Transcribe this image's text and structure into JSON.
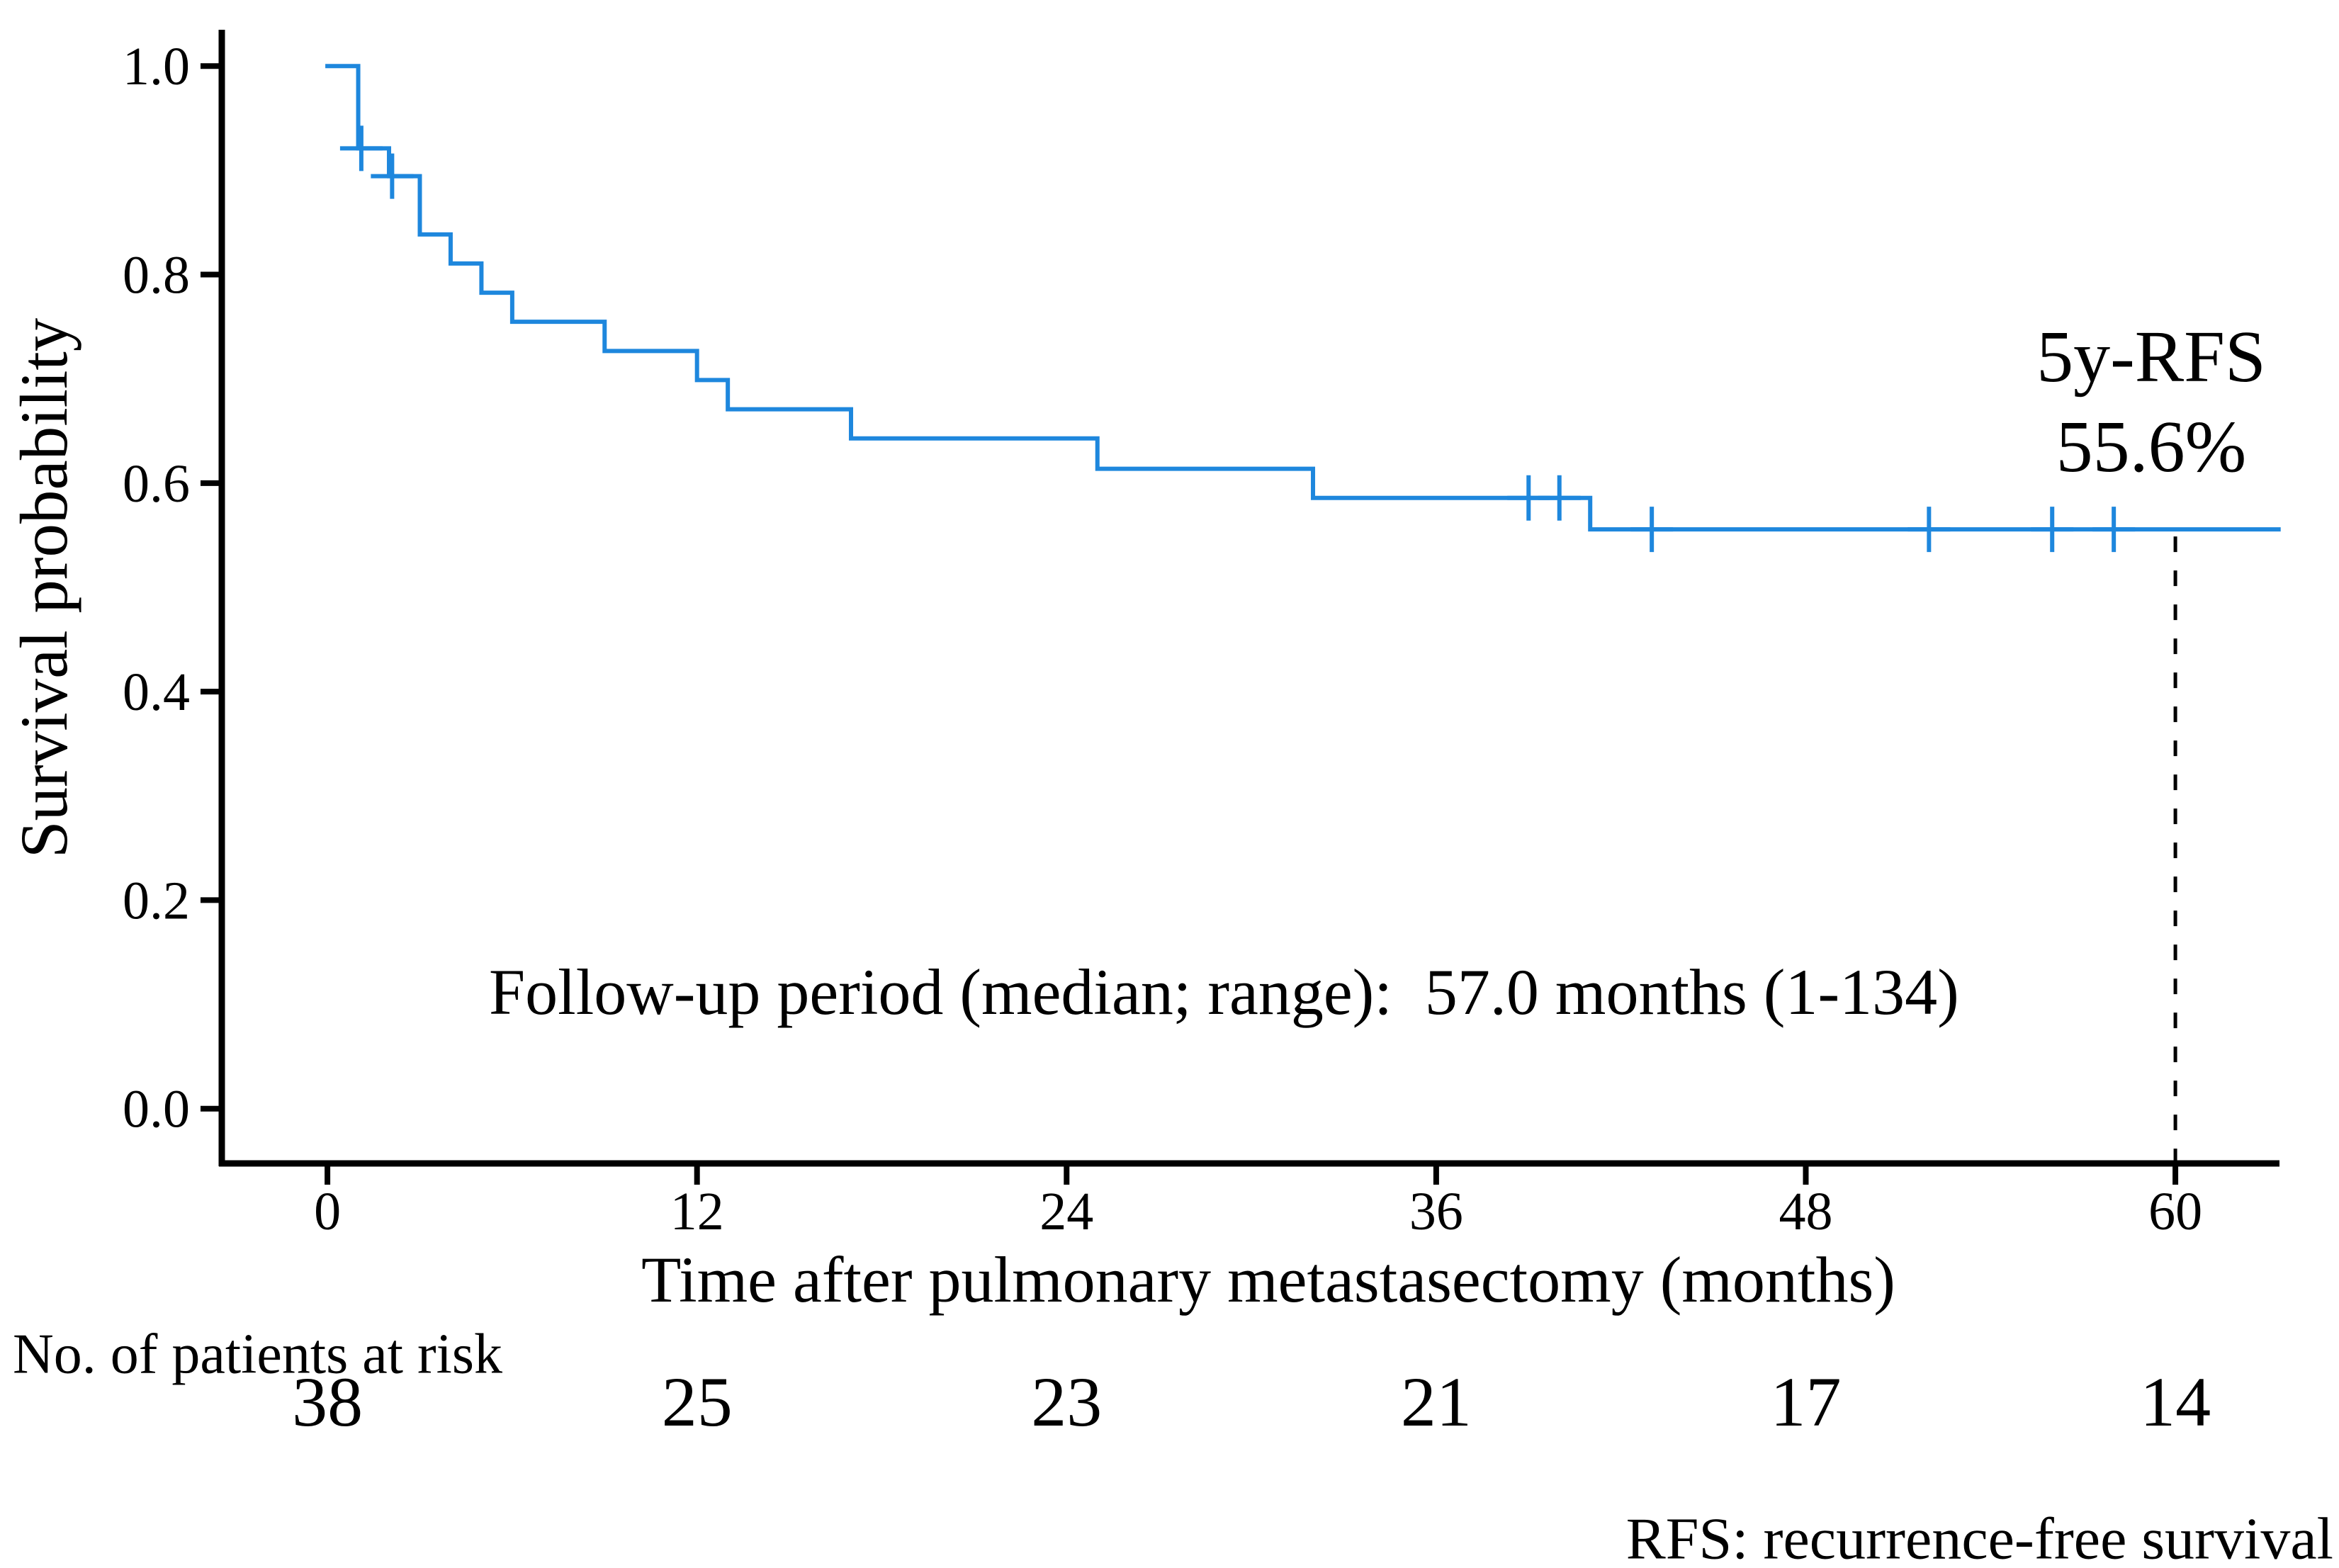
{
  "figure": {
    "y_axis_title": "Survival probability",
    "x_axis_title": "Time after pulmonary metastasectomy (months)",
    "annotation": "5y-RFS\n55.6%",
    "annotation_line1": "5y-RFS",
    "annotation_line2": "55.6%",
    "followup_note": "Follow-up period (median; range):  57.0 months (1-134)",
    "at_risk_header": "No. of patients at risk",
    "footer_note": "RFS: recurrence-free survival"
  },
  "colors": {
    "curve": "#1E87DD",
    "axis": "#000000",
    "text": "#000000",
    "background": "#FFFFFF"
  },
  "chart_data": {
    "type": "line",
    "subtype": "kaplan-meier-step",
    "title": "",
    "xlabel": "Time after pulmonary metastasectomy (months)",
    "ylabel": "Survival probability",
    "xlim": [
      -3.43,
      63.38
    ],
    "ylim": [
      -0.0525,
      1.0348
    ],
    "grid": false,
    "x_ticks": [
      {
        "v": 0,
        "label": "0"
      },
      {
        "v": 12,
        "label": "12"
      },
      {
        "v": 24,
        "label": "24"
      },
      {
        "v": 36,
        "label": "36"
      },
      {
        "v": 48,
        "label": "48"
      },
      {
        "v": 60,
        "label": "60"
      }
    ],
    "y_ticks": [
      {
        "v": 0.0,
        "label": "0.0"
      },
      {
        "v": 0.2,
        "label": "0.2"
      },
      {
        "v": 0.4,
        "label": "0.4"
      },
      {
        "v": 0.6,
        "label": "0.6"
      },
      {
        "v": 0.8,
        "label": "0.8"
      },
      {
        "v": 1.0,
        "label": "1.0"
      }
    ],
    "km_steps": [
      {
        "t": 0,
        "s": 1.0
      },
      {
        "t": 1,
        "s": 0.9211
      },
      {
        "t": 2,
        "s": 0.8944
      },
      {
        "t": 3,
        "s": 0.8385
      },
      {
        "t": 4,
        "s": 0.8106
      },
      {
        "t": 5,
        "s": 0.7826
      },
      {
        "t": 6,
        "s": 0.7547
      },
      {
        "t": 9,
        "s": 0.7267
      },
      {
        "t": 12,
        "s": 0.6988
      },
      {
        "t": 13,
        "s": 0.6708
      },
      {
        "t": 17,
        "s": 0.6429
      },
      {
        "t": 25,
        "s": 0.6137
      },
      {
        "t": 32,
        "s": 0.5858
      },
      {
        "t": 41,
        "s": 0.5556
      }
    ],
    "curve_end_t": 63.35,
    "censors": [
      {
        "t": 1.1,
        "s": 0.9211
      },
      {
        "t": 2.1,
        "s": 0.8944
      },
      {
        "t": 39,
        "s": 0.5858
      },
      {
        "t": 40,
        "s": 0.5858
      },
      {
        "t": 43,
        "s": 0.5556
      },
      {
        "t": 52,
        "s": 0.5556
      },
      {
        "t": 56,
        "s": 0.5556
      },
      {
        "t": 58,
        "s": 0.5556
      }
    ],
    "dashed_marker": {
      "t": 60,
      "s_top": 0.5556
    },
    "five_year_rfs_pct": "55.6%",
    "median_followup_months": "57.0",
    "followup_range": "1-134",
    "at_risk": {
      "times": [
        0,
        12,
        24,
        36,
        48,
        60
      ],
      "counts": [
        "38",
        "25",
        "23",
        "21",
        "17",
        "14"
      ]
    }
  }
}
